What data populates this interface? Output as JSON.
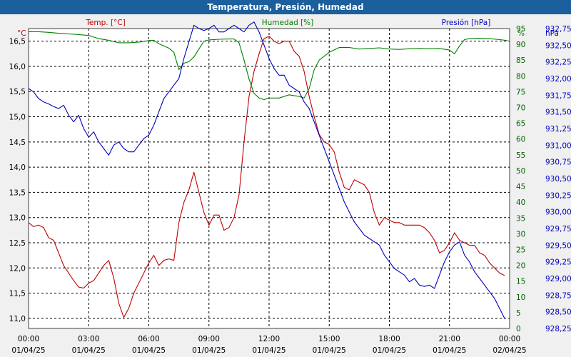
{
  "title": "Temperatura, Presión, Humedad",
  "colors": {
    "temp": "#c00000",
    "hum": "#008000",
    "pres": "#0000c0",
    "title_bg": "#1b5f9c",
    "plot_bg": "#ffffff"
  },
  "chart_data": {
    "type": "line",
    "title": "Temperatura, Presión, Humedad",
    "grid": true,
    "x_ticks": [
      {
        "time": "00:00",
        "date": "01/04/25"
      },
      {
        "time": "03:00",
        "date": "01/04/25"
      },
      {
        "time": "06:00",
        "date": "01/04/25"
      },
      {
        "time": "09:00",
        "date": "01/04/25"
      },
      {
        "time": "12:00",
        "date": "01/04/25"
      },
      {
        "time": "15:00",
        "date": "01/04/25"
      },
      {
        "time": "18:00",
        "date": "01/04/25"
      },
      {
        "time": "21:00",
        "date": "01/04/25"
      },
      {
        "time": "00:00",
        "date": "02/04/25"
      }
    ],
    "axes": {
      "temp": {
        "label": "Temp. [°C]",
        "unit": "°C",
        "min": 10.8,
        "max": 16.75,
        "ticks": [
          "11,0",
          "11,5",
          "12,0",
          "12,5",
          "13,0",
          "13,5",
          "14,0",
          "14,5",
          "15,0",
          "15,5",
          "16,0",
          "16,5"
        ]
      },
      "hum": {
        "label": "Humedad [%]",
        "unit": "%",
        "min": 0,
        "max": 95,
        "ticks": [
          "0",
          "5",
          "10",
          "15",
          "20",
          "25",
          "30",
          "35",
          "40",
          "45",
          "50",
          "55",
          "60",
          "65",
          "70",
          "75",
          "80",
          "85",
          "90",
          "95"
        ]
      },
      "pres": {
        "label": "Presión [hPa]",
        "unit": "hPa",
        "min": 928.25,
        "max": 932.75,
        "ticks": [
          "928,25",
          "928,50",
          "928,75",
          "929,00",
          "929,25",
          "929,50",
          "929,75",
          "930,00",
          "930,25",
          "930,50",
          "930,75",
          "931,00",
          "931,25",
          "931,50",
          "931,75",
          "932,00",
          "932,25",
          "932,50",
          "932,75"
        ]
      }
    },
    "series": [
      {
        "name": "Temp. [°C]",
        "axis": "temp",
        "points": [
          [
            0,
            12.9
          ],
          [
            0.25,
            12.82
          ],
          [
            0.5,
            12.85
          ],
          [
            0.75,
            12.8
          ],
          [
            1.0,
            12.6
          ],
          [
            1.25,
            12.55
          ],
          [
            1.5,
            12.3
          ],
          [
            1.75,
            12.05
          ],
          [
            2.0,
            11.9
          ],
          [
            2.25,
            11.75
          ],
          [
            2.5,
            11.62
          ],
          [
            2.75,
            11.6
          ],
          [
            3.0,
            11.7
          ],
          [
            3.25,
            11.75
          ],
          [
            3.5,
            11.9
          ],
          [
            3.75,
            12.05
          ],
          [
            4.0,
            12.15
          ],
          [
            4.25,
            11.8
          ],
          [
            4.5,
            11.3
          ],
          [
            4.75,
            11.02
          ],
          [
            5.0,
            11.2
          ],
          [
            5.25,
            11.5
          ],
          [
            5.5,
            11.7
          ],
          [
            5.75,
            11.9
          ],
          [
            6.0,
            12.1
          ],
          [
            6.25,
            12.25
          ],
          [
            6.5,
            12.05
          ],
          [
            6.75,
            12.15
          ],
          [
            7.0,
            12.18
          ],
          [
            7.25,
            12.15
          ],
          [
            7.5,
            12.9
          ],
          [
            7.75,
            13.3
          ],
          [
            8.0,
            13.55
          ],
          [
            8.25,
            13.9
          ],
          [
            8.5,
            13.5
          ],
          [
            8.75,
            13.1
          ],
          [
            9.0,
            12.85
          ],
          [
            9.25,
            13.05
          ],
          [
            9.5,
            13.05
          ],
          [
            9.75,
            12.75
          ],
          [
            10.0,
            12.8
          ],
          [
            10.25,
            13.0
          ],
          [
            10.5,
            13.45
          ],
          [
            10.75,
            14.5
          ],
          [
            11.0,
            15.4
          ],
          [
            11.25,
            15.9
          ],
          [
            11.5,
            16.25
          ],
          [
            11.75,
            16.55
          ],
          [
            12.0,
            16.6
          ],
          [
            12.25,
            16.5
          ],
          [
            12.5,
            16.45
          ],
          [
            12.75,
            16.5
          ],
          [
            13.0,
            16.5
          ],
          [
            13.25,
            16.3
          ],
          [
            13.5,
            16.2
          ],
          [
            13.75,
            15.9
          ],
          [
            14.0,
            15.4
          ],
          [
            14.25,
            15.0
          ],
          [
            14.5,
            14.65
          ],
          [
            14.75,
            14.5
          ],
          [
            15.0,
            14.45
          ],
          [
            15.25,
            14.3
          ],
          [
            15.5,
            13.9
          ],
          [
            15.75,
            13.6
          ],
          [
            16.0,
            13.55
          ],
          [
            16.25,
            13.75
          ],
          [
            16.5,
            13.7
          ],
          [
            16.75,
            13.65
          ],
          [
            17.0,
            13.5
          ],
          [
            17.25,
            13.1
          ],
          [
            17.5,
            12.85
          ],
          [
            17.75,
            13.0
          ],
          [
            18.0,
            12.95
          ],
          [
            18.25,
            12.9
          ],
          [
            18.5,
            12.9
          ],
          [
            18.75,
            12.85
          ],
          [
            19.0,
            12.85
          ],
          [
            19.25,
            12.85
          ],
          [
            19.5,
            12.85
          ],
          [
            19.75,
            12.8
          ],
          [
            20.0,
            12.7
          ],
          [
            20.25,
            12.55
          ],
          [
            20.5,
            12.3
          ],
          [
            20.75,
            12.35
          ],
          [
            21.0,
            12.5
          ],
          [
            21.25,
            12.7
          ],
          [
            21.5,
            12.55
          ],
          [
            21.75,
            12.5
          ],
          [
            22.0,
            12.45
          ],
          [
            22.25,
            12.45
          ],
          [
            22.5,
            12.3
          ],
          [
            22.75,
            12.25
          ],
          [
            23.0,
            12.1
          ],
          [
            23.25,
            12.0
          ],
          [
            23.5,
            11.9
          ],
          [
            23.75,
            11.85
          ]
        ]
      },
      {
        "name": "Humedad [%]",
        "axis": "hum",
        "points": [
          [
            0,
            94
          ],
          [
            0.5,
            94
          ],
          [
            1.0,
            93.8
          ],
          [
            1.5,
            93.5
          ],
          [
            2.0,
            93.3
          ],
          [
            2.5,
            93.1
          ],
          [
            3.0,
            92.8
          ],
          [
            3.5,
            91.8
          ],
          [
            4.0,
            91.3
          ],
          [
            4.5,
            90.5
          ],
          [
            5.0,
            90.5
          ],
          [
            5.5,
            90.7
          ],
          [
            6.0,
            91.2
          ],
          [
            6.25,
            91.3
          ],
          [
            6.5,
            90.2
          ],
          [
            7.0,
            88.8
          ],
          [
            7.25,
            87.5
          ],
          [
            7.5,
            82.0
          ],
          [
            7.75,
            84.0
          ],
          [
            8.0,
            84.5
          ],
          [
            8.25,
            86.0
          ],
          [
            8.5,
            88.5
          ],
          [
            8.75,
            91.0
          ],
          [
            9.0,
            91.4
          ],
          [
            9.5,
            91.6
          ],
          [
            10.0,
            91.7
          ],
          [
            10.25,
            91.7
          ],
          [
            10.5,
            90.5
          ],
          [
            10.75,
            85.0
          ],
          [
            11.0,
            79.0
          ],
          [
            11.25,
            74.5
          ],
          [
            11.5,
            73.0
          ],
          [
            11.75,
            72.5
          ],
          [
            12.0,
            73.0
          ],
          [
            12.5,
            73.0
          ],
          [
            13.0,
            74.0
          ],
          [
            13.5,
            73.5
          ],
          [
            13.75,
            73.0
          ],
          [
            14.0,
            76.0
          ],
          [
            14.25,
            82.0
          ],
          [
            14.5,
            85.0
          ],
          [
            15.0,
            87.5
          ],
          [
            15.5,
            89.0
          ],
          [
            16.0,
            89.0
          ],
          [
            16.5,
            88.5
          ],
          [
            17.0,
            88.7
          ],
          [
            17.5,
            88.9
          ],
          [
            18.0,
            88.5
          ],
          [
            18.5,
            88.4
          ],
          [
            19.0,
            88.6
          ],
          [
            19.5,
            88.7
          ],
          [
            20.0,
            88.6
          ],
          [
            20.5,
            88.7
          ],
          [
            21.0,
            88.2
          ],
          [
            21.25,
            87.0
          ],
          [
            21.5,
            89.5
          ],
          [
            21.75,
            91.5
          ],
          [
            22.0,
            91.8
          ],
          [
            22.5,
            91.9
          ],
          [
            23.0,
            91.8
          ],
          [
            23.5,
            91.5
          ],
          [
            23.9,
            91.2
          ]
        ]
      },
      {
        "name": "Presión [hPa]",
        "axis": "pres",
        "points": [
          [
            0,
            931.85
          ],
          [
            0.25,
            931.8
          ],
          [
            0.5,
            931.7
          ],
          [
            0.75,
            931.65
          ],
          [
            1.0,
            931.62
          ],
          [
            1.25,
            931.58
          ],
          [
            1.5,
            931.55
          ],
          [
            1.75,
            931.6
          ],
          [
            2.0,
            931.45
          ],
          [
            2.25,
            931.35
          ],
          [
            2.5,
            931.45
          ],
          [
            2.75,
            931.25
          ],
          [
            3.0,
            931.12
          ],
          [
            3.25,
            931.2
          ],
          [
            3.5,
            931.05
          ],
          [
            3.75,
            930.95
          ],
          [
            4.0,
            930.85
          ],
          [
            4.25,
            931.0
          ],
          [
            4.5,
            931.05
          ],
          [
            4.75,
            930.95
          ],
          [
            5.0,
            930.9
          ],
          [
            5.25,
            930.9
          ],
          [
            5.5,
            931.0
          ],
          [
            5.75,
            931.1
          ],
          [
            6.0,
            931.15
          ],
          [
            6.25,
            931.3
          ],
          [
            6.5,
            931.5
          ],
          [
            6.75,
            931.7
          ],
          [
            7.0,
            931.8
          ],
          [
            7.25,
            931.9
          ],
          [
            7.5,
            932.0
          ],
          [
            7.75,
            932.3
          ],
          [
            8.0,
            932.55
          ],
          [
            8.25,
            932.8
          ],
          [
            8.5,
            932.75
          ],
          [
            8.75,
            932.72
          ],
          [
            9.0,
            932.75
          ],
          [
            9.25,
            932.8
          ],
          [
            9.5,
            932.7
          ],
          [
            9.75,
            932.7
          ],
          [
            10.0,
            932.75
          ],
          [
            10.25,
            932.8
          ],
          [
            10.5,
            932.75
          ],
          [
            10.75,
            932.7
          ],
          [
            11.0,
            932.8
          ],
          [
            11.25,
            932.85
          ],
          [
            11.5,
            932.7
          ],
          [
            11.75,
            932.5
          ],
          [
            12.0,
            932.3
          ],
          [
            12.25,
            932.15
          ],
          [
            12.5,
            932.05
          ],
          [
            12.75,
            932.05
          ],
          [
            13.0,
            931.9
          ],
          [
            13.25,
            931.85
          ],
          [
            13.5,
            931.8
          ],
          [
            13.75,
            931.65
          ],
          [
            14.0,
            931.55
          ],
          [
            14.25,
            931.35
          ],
          [
            14.5,
            931.15
          ],
          [
            14.75,
            930.95
          ],
          [
            15.0,
            930.75
          ],
          [
            15.25,
            930.55
          ],
          [
            15.5,
            930.35
          ],
          [
            15.75,
            930.15
          ],
          [
            16.0,
            930.0
          ],
          [
            16.25,
            929.85
          ],
          [
            16.5,
            929.75
          ],
          [
            16.75,
            929.65
          ],
          [
            17.0,
            929.6
          ],
          [
            17.25,
            929.55
          ],
          [
            17.5,
            929.5
          ],
          [
            17.75,
            929.35
          ],
          [
            18.0,
            929.25
          ],
          [
            18.25,
            929.15
          ],
          [
            18.5,
            929.1
          ],
          [
            18.75,
            929.05
          ],
          [
            19.0,
            928.95
          ],
          [
            19.25,
            929.0
          ],
          [
            19.5,
            928.9
          ],
          [
            19.75,
            928.88
          ],
          [
            20.0,
            928.9
          ],
          [
            20.25,
            928.85
          ],
          [
            20.5,
            929.05
          ],
          [
            20.75,
            929.25
          ],
          [
            21.0,
            929.4
          ],
          [
            21.25,
            929.5
          ],
          [
            21.5,
            929.55
          ],
          [
            21.75,
            929.35
          ],
          [
            22.0,
            929.25
          ],
          [
            22.25,
            929.1
          ],
          [
            22.5,
            929.0
          ],
          [
            22.75,
            928.9
          ],
          [
            23.0,
            928.8
          ],
          [
            23.25,
            928.7
          ],
          [
            23.5,
            928.55
          ],
          [
            23.75,
            928.4
          ]
        ]
      }
    ]
  }
}
